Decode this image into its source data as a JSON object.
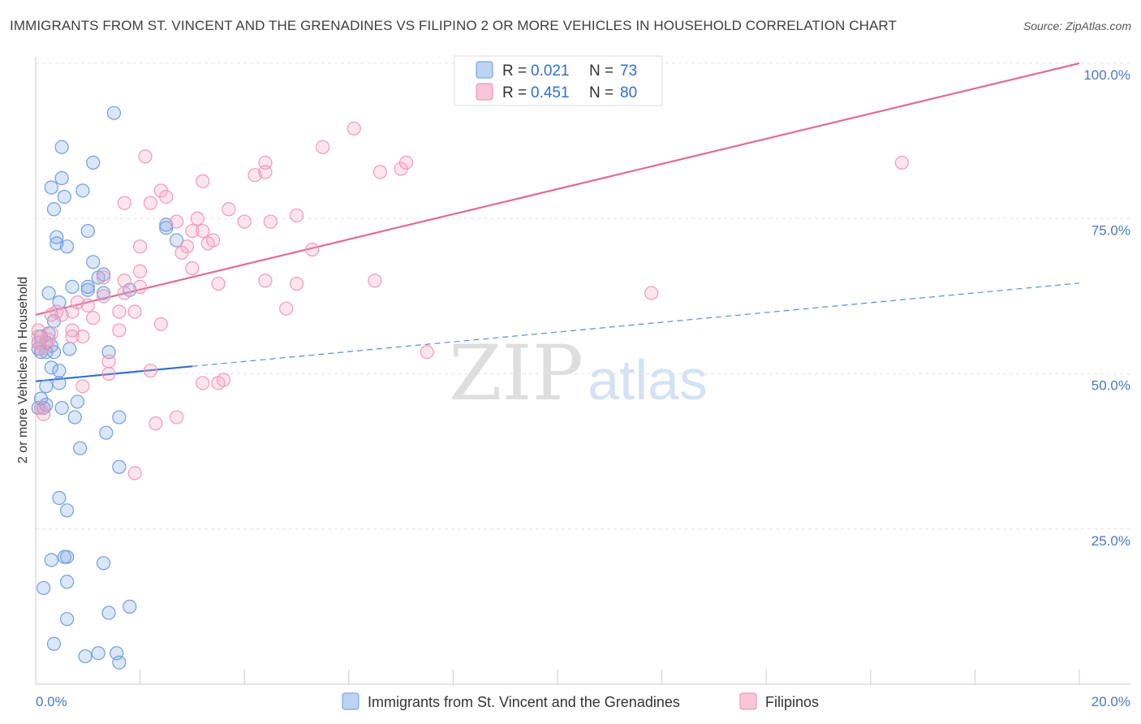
{
  "header": {
    "title": "IMMIGRANTS FROM ST. VINCENT AND THE GRENADINES VS FILIPINO 2 OR MORE VEHICLES IN HOUSEHOLD CORRELATION CHART",
    "source": "Source: ZipAtlas.com"
  },
  "watermark": {
    "zip": "ZIP",
    "atlas": "atlas"
  },
  "legend": {
    "r_label": "R =",
    "n_label": "N =",
    "series": [
      {
        "r": "0.021",
        "n": "73"
      },
      {
        "r": "0.451",
        "n": "80"
      }
    ]
  },
  "chart_data": {
    "type": "scatter",
    "title": "IMMIGRANTS FROM ST. VINCENT AND THE GRENADINES VS FILIPINO 2 OR MORE VEHICLES IN HOUSEHOLD CORRELATION CHART",
    "xlabel": "",
    "ylabel": "2 or more Vehicles in Household",
    "xlim": [
      0,
      20
    ],
    "ylim": [
      0,
      100
    ],
    "x_tick_labels": [
      "0.0%",
      "20.0%"
    ],
    "y_tick_labels": [
      "25.0%",
      "50.0%",
      "75.0%",
      "100.0%"
    ],
    "y_ticks": [
      25,
      50,
      75,
      100
    ],
    "grid": true,
    "legend_position": "top-center",
    "colors": {
      "blue": "#6f9fe0",
      "blue_line": "#2f6fd0",
      "pink": "#f09ab7",
      "pink_line": "#e26b93"
    },
    "series": [
      {
        "name": "Immigrants from St. Vincent and the Grenadines",
        "r": 0.021,
        "n": 73,
        "trend": {
          "x": [
            0,
            3.0
          ],
          "y": [
            48.8,
            51.2
          ],
          "dashed_to": [
            20,
            64.6
          ]
        },
        "points": [
          [
            1.5,
            92
          ],
          [
            0.5,
            86.5
          ],
          [
            1.1,
            84
          ],
          [
            0.5,
            81.5
          ],
          [
            0.3,
            80
          ],
          [
            0.9,
            79.5
          ],
          [
            0.55,
            78.5
          ],
          [
            0.35,
            76.5
          ],
          [
            1.0,
            73
          ],
          [
            2.5,
            73.5
          ],
          [
            2.5,
            74
          ],
          [
            2.7,
            71.5
          ],
          [
            0.4,
            72
          ],
          [
            0.4,
            71
          ],
          [
            0.6,
            70.5
          ],
          [
            1.1,
            68
          ],
          [
            1.2,
            65.5
          ],
          [
            1.3,
            66
          ],
          [
            1.8,
            63.5
          ],
          [
            1.0,
            64
          ],
          [
            1.0,
            63.5
          ],
          [
            0.7,
            64
          ],
          [
            1.3,
            63
          ],
          [
            0.25,
            63
          ],
          [
            0.45,
            61.5
          ],
          [
            0.35,
            58.5
          ],
          [
            0.25,
            56.5
          ],
          [
            0.1,
            56
          ],
          [
            0.2,
            55
          ],
          [
            0.05,
            55
          ],
          [
            0.3,
            54.5
          ],
          [
            0.05,
            54
          ],
          [
            0.2,
            53.5
          ],
          [
            0.1,
            53.5
          ],
          [
            0.35,
            53.5
          ],
          [
            0.65,
            54
          ],
          [
            1.4,
            53.5
          ],
          [
            0.3,
            51
          ],
          [
            0.45,
            50.5
          ],
          [
            0.45,
            48.5
          ],
          [
            0.2,
            48
          ],
          [
            0.1,
            46
          ],
          [
            0.15,
            44.5
          ],
          [
            0.05,
            44.5
          ],
          [
            0.2,
            45
          ],
          [
            0.8,
            45.5
          ],
          [
            0.5,
            44.5
          ],
          [
            0.75,
            43
          ],
          [
            1.6,
            43
          ],
          [
            1.35,
            40.5
          ],
          [
            0.85,
            38
          ],
          [
            1.6,
            35
          ],
          [
            0.45,
            30
          ],
          [
            0.6,
            28
          ],
          [
            0.3,
            20
          ],
          [
            0.55,
            20.5
          ],
          [
            0.6,
            20.5
          ],
          [
            1.3,
            19.5
          ],
          [
            0.6,
            16.5
          ],
          [
            0.15,
            15.5
          ],
          [
            1.4,
            11.5
          ],
          [
            1.8,
            12.5
          ],
          [
            0.6,
            10.5
          ],
          [
            0.35,
            6.5
          ],
          [
            1.2,
            5
          ],
          [
            0.95,
            4.5
          ],
          [
            1.55,
            5
          ],
          [
            1.6,
            3.5
          ]
        ]
      },
      {
        "name": "Filipinos",
        "r": 0.451,
        "n": 80,
        "trend": {
          "x": [
            0,
            20
          ],
          "y": [
            59.5,
            100
          ]
        },
        "points": [
          [
            6.1,
            89.5
          ],
          [
            5.5,
            86.5
          ],
          [
            2.1,
            85
          ],
          [
            4.4,
            84
          ],
          [
            7.1,
            84
          ],
          [
            16.6,
            84
          ],
          [
            4.2,
            82
          ],
          [
            4.4,
            82.5
          ],
          [
            6.6,
            82.5
          ],
          [
            7.0,
            83
          ],
          [
            3.2,
            81
          ],
          [
            2.4,
            79.5
          ],
          [
            2.5,
            78.5
          ],
          [
            1.7,
            77.5
          ],
          [
            2.2,
            77.5
          ],
          [
            3.7,
            76.5
          ],
          [
            3.1,
            75
          ],
          [
            5.0,
            75.5
          ],
          [
            2.7,
            74.5
          ],
          [
            4.0,
            74.5
          ],
          [
            4.5,
            74.5
          ],
          [
            3.0,
            73
          ],
          [
            3.2,
            73
          ],
          [
            3.4,
            71.5
          ],
          [
            2.0,
            70.5
          ],
          [
            2.9,
            70.5
          ],
          [
            3.3,
            71
          ],
          [
            5.3,
            70
          ],
          [
            2.8,
            69.5
          ],
          [
            3.0,
            67
          ],
          [
            2.0,
            66.5
          ],
          [
            1.3,
            65.5
          ],
          [
            1.7,
            65
          ],
          [
            3.5,
            64.5
          ],
          [
            4.4,
            65
          ],
          [
            6.5,
            65
          ],
          [
            5.0,
            64.5
          ],
          [
            2.0,
            64
          ],
          [
            1.3,
            62.5
          ],
          [
            1.7,
            63
          ],
          [
            11.8,
            63
          ],
          [
            0.8,
            61.5
          ],
          [
            1.0,
            61
          ],
          [
            0.7,
            60
          ],
          [
            0.4,
            60
          ],
          [
            1.6,
            60
          ],
          [
            1.9,
            60
          ],
          [
            4.8,
            60.5
          ],
          [
            0.3,
            59.5
          ],
          [
            0.5,
            59.5
          ],
          [
            1.1,
            59
          ],
          [
            2.4,
            58
          ],
          [
            1.6,
            57
          ],
          [
            0.05,
            57
          ],
          [
            0.3,
            56.5
          ],
          [
            0.7,
            57
          ],
          [
            0.05,
            56
          ],
          [
            0.25,
            55.5
          ],
          [
            0.7,
            56
          ],
          [
            0.9,
            56
          ],
          [
            0.05,
            55
          ],
          [
            0.2,
            54.5
          ],
          [
            0.1,
            54
          ],
          [
            7.5,
            53.5
          ],
          [
            1.4,
            52
          ],
          [
            1.4,
            50
          ],
          [
            2.2,
            50.5
          ],
          [
            3.2,
            48.5
          ],
          [
            3.5,
            48.5
          ],
          [
            3.6,
            49
          ],
          [
            0.9,
            48
          ],
          [
            0.1,
            44.5
          ],
          [
            0.15,
            43.5
          ],
          [
            2.3,
            42
          ],
          [
            2.7,
            43
          ],
          [
            1.9,
            34
          ]
        ]
      }
    ]
  },
  "bottom_legend": {
    "items": [
      {
        "label": "Immigrants from St. Vincent and the Grenadines"
      },
      {
        "label": "Filipinos"
      }
    ]
  }
}
